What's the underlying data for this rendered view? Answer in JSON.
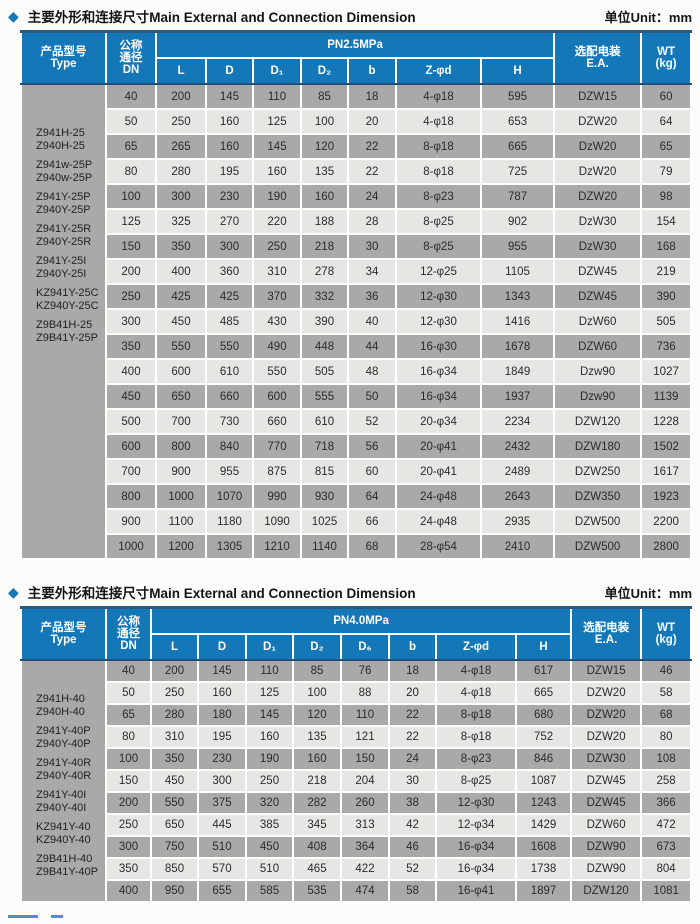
{
  "colors": {
    "header_blue": "#1377b8",
    "row_dark": "#a9a9a9",
    "row_light": "#e6e6e3",
    "type_column_bg": "#dcdcda",
    "accent_strip": "#3f97d2"
  },
  "icons": {
    "diamond": "◆"
  },
  "section1": {
    "title": "主要外形和连接尺寸Main External and Connection Dimension",
    "unit": "单位Unit：mm",
    "table": {
      "type_header": "产品型号\nType",
      "dn_header": "公称\n通径\nDN",
      "pn_header": "PN2.5MPa",
      "sub_headers": [
        "L",
        "D",
        "D₁",
        "D₂",
        "b",
        "Z-φd",
        "H"
      ],
      "ea_header": "选配电装\nE.A.",
      "wt_header": "WT\n(kg)",
      "type_pairs": [
        [
          "Z941H-25",
          "Z940H-25"
        ],
        [
          "Z941w-25P",
          "Z940w-25P"
        ],
        [
          "Z941Y-25P",
          "Z940Y-25P"
        ],
        [
          "Z941Y-25R",
          "Z940Y-25R"
        ],
        [
          "Z941Y-25I",
          "Z940Y-25I"
        ],
        [
          "KZ941Y-25C",
          "KZ940Y-25C"
        ],
        [
          "Z9B41H-25",
          "Z9B41Y-25P"
        ]
      ],
      "rows": [
        [
          "40",
          "200",
          "145",
          "110",
          "85",
          "18",
          "4-φ18",
          "595",
          "DZW15",
          "60"
        ],
        [
          "50",
          "250",
          "160",
          "125",
          "100",
          "20",
          "4-φ18",
          "653",
          "DZW20",
          "64"
        ],
        [
          "65",
          "265",
          "160",
          "145",
          "120",
          "22",
          "8-φ18",
          "665",
          "DzW20",
          "65"
        ],
        [
          "80",
          "280",
          "195",
          "160",
          "135",
          "22",
          "8-φ18",
          "725",
          "DzW20",
          "79"
        ],
        [
          "100",
          "300",
          "230",
          "190",
          "160",
          "24",
          "8-φ23",
          "787",
          "DZW20",
          "98"
        ],
        [
          "125",
          "325",
          "270",
          "220",
          "188",
          "28",
          "8-φ25",
          "902",
          "DzW30",
          "154"
        ],
        [
          "150",
          "350",
          "300",
          "250",
          "218",
          "30",
          "8-φ25",
          "955",
          "DzW30",
          "168"
        ],
        [
          "200",
          "400",
          "360",
          "310",
          "278",
          "34",
          "12-φ25",
          "1105",
          "DZW45",
          "219"
        ],
        [
          "250",
          "425",
          "425",
          "370",
          "332",
          "36",
          "12-φ30",
          "1343",
          "DZW45",
          "390"
        ],
        [
          "300",
          "450",
          "485",
          "430",
          "390",
          "40",
          "12-φ30",
          "1416",
          "DzW60",
          "505"
        ],
        [
          "350",
          "550",
          "550",
          "490",
          "448",
          "44",
          "16-φ30",
          "1678",
          "DZW60",
          "736"
        ],
        [
          "400",
          "600",
          "610",
          "550",
          "505",
          "48",
          "16-φ34",
          "1849",
          "Dzw90",
          "1027"
        ],
        [
          "450",
          "650",
          "660",
          "600",
          "555",
          "50",
          "16-φ34",
          "1937",
          "Dzw90",
          "1139"
        ],
        [
          "500",
          "700",
          "730",
          "660",
          "610",
          "52",
          "20-φ34",
          "2234",
          "DZW120",
          "1228"
        ],
        [
          "600",
          "800",
          "840",
          "770",
          "718",
          "56",
          "20-φ41",
          "2432",
          "DZW180",
          "1502"
        ],
        [
          "700",
          "900",
          "955",
          "875",
          "815",
          "60",
          "20-φ41",
          "2489",
          "DZW250",
          "1617"
        ],
        [
          "800",
          "1000",
          "1070",
          "990",
          "930",
          "64",
          "24-φ48",
          "2643",
          "DZW350",
          "1923"
        ],
        [
          "900",
          "1100",
          "1180",
          "1090",
          "1025",
          "66",
          "24-φ48",
          "2935",
          "DZW500",
          "2200"
        ],
        [
          "1000",
          "1200",
          "1305",
          "1210",
          "1140",
          "68",
          "28-φ54",
          "2410",
          "DZW500",
          "2800"
        ]
      ]
    }
  },
  "section2": {
    "title": "主要外形和连接尺寸Main External and Connection Dimension",
    "unit": "单位Unit：mm",
    "table": {
      "type_header": "产品型号\nType",
      "dn_header": "公称\n通径\nDN",
      "pn_header": "PN4.0MPa",
      "sub_headers": [
        "L",
        "D",
        "D₁",
        "D₂",
        "D₆",
        "b",
        "Z-φd",
        "H"
      ],
      "ea_header": "选配电装\nE.A.",
      "wt_header": "WT\n(kg)",
      "type_pairs": [
        [
          "Z941H-40",
          "Z940H-40"
        ],
        [
          "Z941Y-40P",
          "Z940Y-40P"
        ],
        [
          "Z941Y-40R",
          "Z940Y-40R"
        ],
        [
          "Z941Y-40I",
          "Z940Y-40I"
        ],
        [
          "KZ941Y-40",
          "KZ940Y-40"
        ],
        [
          "Z9B41H-40",
          "Z9B41Y-40P"
        ]
      ],
      "rows": [
        [
          "40",
          "200",
          "145",
          "110",
          "85",
          "76",
          "18",
          "4-φ18",
          "617",
          "DZW15",
          "46"
        ],
        [
          "50",
          "250",
          "160",
          "125",
          "100",
          "88",
          "20",
          "4-φ18",
          "665",
          "DZW20",
          "58"
        ],
        [
          "65",
          "280",
          "180",
          "145",
          "120",
          "110",
          "22",
          "8-φ18",
          "680",
          "DZW20",
          "68"
        ],
        [
          "80",
          "310",
          "195",
          "160",
          "135",
          "121",
          "22",
          "8-φ18",
          "752",
          "DZW20",
          "80"
        ],
        [
          "100",
          "350",
          "230",
          "190",
          "160",
          "150",
          "24",
          "8-φ23",
          "846",
          "DZW30",
          "108"
        ],
        [
          "150",
          "450",
          "300",
          "250",
          "218",
          "204",
          "30",
          "8-φ25",
          "1087",
          "DZW45",
          "258"
        ],
        [
          "200",
          "550",
          "375",
          "320",
          "282",
          "260",
          "38",
          "12-φ30",
          "1243",
          "DZW45",
          "366"
        ],
        [
          "250",
          "650",
          "445",
          "385",
          "345",
          "313",
          "42",
          "12-φ34",
          "1429",
          "DZW60",
          "472"
        ],
        [
          "300",
          "750",
          "510",
          "450",
          "408",
          "364",
          "46",
          "16-φ34",
          "1608",
          "DZW90",
          "673"
        ],
        [
          "350",
          "850",
          "570",
          "510",
          "465",
          "422",
          "52",
          "16-φ34",
          "1738",
          "DZW90",
          "804"
        ],
        [
          "400",
          "950",
          "655",
          "585",
          "535",
          "474",
          "58",
          "16-φ41",
          "1897",
          "DZW120",
          "1081"
        ]
      ]
    }
  }
}
